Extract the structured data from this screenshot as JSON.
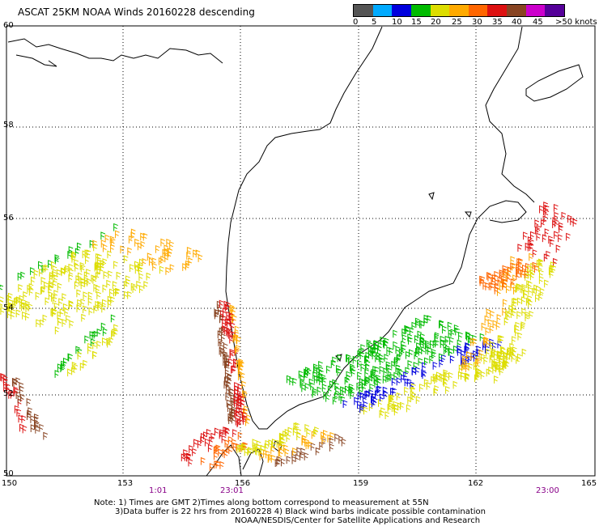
{
  "title": "ASCAT 25KM NOAA Winds 20160228 descending",
  "legend": {
    "colors": [
      "#555555",
      "#00aaff",
      "#0000dd",
      "#00bb00",
      "#dddd00",
      "#ffaa00",
      "#ff6600",
      "#dd1111",
      "#884422",
      "#cc00cc",
      "#550099"
    ],
    "ticks": [
      "0",
      "5",
      "10",
      "15",
      "20",
      "25",
      "30",
      "35",
      "40",
      "45",
      ">50 knots"
    ]
  },
  "lat_labels": [
    "60",
    "58",
    "56",
    "54",
    "52",
    "50"
  ],
  "lon_labels": [
    "150",
    "153",
    "156",
    "159",
    "162",
    "165"
  ],
  "time_labels": [
    "1:01",
    "23:01",
    "23:00"
  ],
  "notes": [
    "Note: 1) Times are GMT 2)Times along bottom correspond to measurement at 55N",
    "3)Data buffer is 22 hrs from 20160228 4) Black wind barbs indicate possible contamination",
    "NOAA/NESDIS/Center for Satellite Applications and Research"
  ]
}
